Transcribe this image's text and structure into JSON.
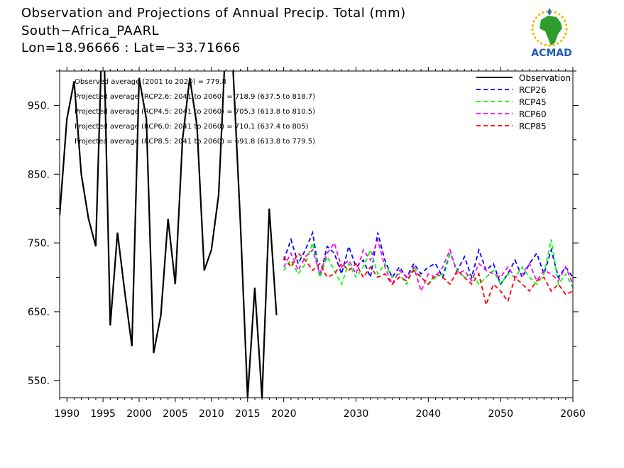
{
  "header": {
    "title_line1": "Observation and Projections of Annual Precip. Total (mm)",
    "title_line2": "South−Africa_PAARL",
    "title_line3": "Lon=18.96666 : Lat=−33.71666"
  },
  "logo": {
    "text": "ACMAD",
    "icon": "africa-map-logo"
  },
  "chart_data": {
    "type": "line",
    "title": "Observation and Projections of Annual Precip. Total (mm)",
    "xlim": [
      1989,
      2060
    ],
    "ylim": [
      525,
      1000
    ],
    "grid": false,
    "legend_placement": "top-right",
    "x_ticks": [
      1990,
      1995,
      2000,
      2005,
      2010,
      2015,
      2020,
      2030,
      2040,
      2050,
      2060
    ],
    "y_ticks": [
      550,
      650,
      750,
      850,
      950
    ],
    "y_tick_labels": [
      "550.",
      "650.",
      "750.",
      "850.",
      "950."
    ],
    "annotations": [
      "Observed average (2001 to 2020) = 779.8",
      "Projected average (RCP2.6: 2041 to 2060) =  718.9 (637.5 to 818.7)",
      "Projected average (RCP4.5: 2041 to 2060) =  705.3 (613.8 to 810.5)",
      "Projected average (RCP6.0: 2041 to 2060) =  710.1 (637.4 to 805)",
      "Projected average (RCP8.5: 2041 to 2060) =  691.8 (613.8 to 779.5)"
    ],
    "series": [
      {
        "name": "Observation",
        "color": "#000000",
        "style": "solid",
        "x": [
          1989,
          1990,
          1991,
          1992,
          1993,
          1994,
          1995,
          1996,
          1997,
          1998,
          1999,
          2000,
          2001,
          2002,
          2003,
          2004,
          2005,
          2006,
          2007,
          2008,
          2009,
          2010,
          2011,
          2012,
          2013,
          2014,
          2015,
          2016,
          2017,
          2018,
          2019,
          2020
        ],
        "y": [
          790,
          930,
          985,
          850,
          785,
          745,
          1100,
          630,
          765,
          680,
          600,
          990,
          930,
          590,
          645,
          785,
          690,
          900,
          990,
          920,
          710,
          740,
          820,
          1050,
          1000,
          780,
          525,
          685,
          525,
          800,
          645,
          null
        ]
      },
      {
        "name": "RCP26",
        "color": "#0000ff",
        "style": "dashed",
        "x": [
          2020,
          2021,
          2022,
          2023,
          2024,
          2025,
          2026,
          2027,
          2028,
          2029,
          2030,
          2031,
          2032,
          2033,
          2034,
          2035,
          2036,
          2037,
          2038,
          2039,
          2040,
          2041,
          2042,
          2043,
          2044,
          2045,
          2046,
          2047,
          2048,
          2049,
          2050,
          2051,
          2052,
          2053,
          2054,
          2055,
          2056,
          2057,
          2058,
          2059,
          2060
        ],
        "y": [
          725,
          755,
          720,
          740,
          765,
          700,
          745,
          735,
          705,
          745,
          715,
          725,
          700,
          765,
          725,
          700,
          715,
          700,
          720,
          705,
          715,
          720,
          700,
          735,
          710,
          730,
          700,
          740,
          710,
          720,
          690,
          705,
          725,
          700,
          720,
          735,
          705,
          740,
          700,
          715,
          700
        ]
      },
      {
        "name": "RCP45",
        "color": "#00ff00",
        "style": "dashed",
        "x": [
          2020,
          2021,
          2022,
          2023,
          2024,
          2025,
          2026,
          2027,
          2028,
          2029,
          2030,
          2031,
          2032,
          2033,
          2034,
          2035,
          2036,
          2037,
          2038,
          2039,
          2040,
          2041,
          2042,
          2043,
          2044,
          2045,
          2046,
          2047,
          2048,
          2049,
          2050,
          2051,
          2052,
          2053,
          2054,
          2055,
          2056,
          2057,
          2058,
          2059,
          2060
        ],
        "y": [
          710,
          725,
          705,
          720,
          750,
          700,
          730,
          710,
          690,
          720,
          700,
          715,
          740,
          705,
          720,
          700,
          705,
          690,
          715,
          700,
          690,
          700,
          705,
          735,
          710,
          700,
          705,
          690,
          700,
          710,
          690,
          705,
          700,
          715,
          700,
          690,
          705,
          755,
          690,
          705,
          685
        ]
      },
      {
        "name": "RCP60",
        "color": "#ff00ff",
        "style": "dashed",
        "x": [
          2020,
          2021,
          2022,
          2023,
          2024,
          2025,
          2026,
          2027,
          2028,
          2029,
          2030,
          2031,
          2032,
          2033,
          2034,
          2035,
          2036,
          2037,
          2038,
          2039,
          2040,
          2041,
          2042,
          2043,
          2044,
          2045,
          2046,
          2047,
          2048,
          2049,
          2050,
          2051,
          2052,
          2053,
          2054,
          2055,
          2056,
          2057,
          2058,
          2059,
          2060
        ],
        "y": [
          715,
          735,
          710,
          730,
          740,
          705,
          735,
          750,
          715,
          725,
          705,
          740,
          725,
          755,
          715,
          690,
          710,
          700,
          715,
          680,
          705,
          700,
          715,
          740,
          705,
          710,
          695,
          720,
          710,
          705,
          700,
          715,
          700,
          705,
          720,
          695,
          710,
          705,
          695,
          715,
          690
        ]
      },
      {
        "name": "RCP85",
        "color": "#ff0000",
        "style": "dashed",
        "x": [
          2020,
          2021,
          2022,
          2023,
          2024,
          2025,
          2026,
          2027,
          2028,
          2029,
          2030,
          2031,
          2032,
          2033,
          2034,
          2035,
          2036,
          2037,
          2038,
          2039,
          2040,
          2041,
          2042,
          2043,
          2044,
          2045,
          2046,
          2047,
          2048,
          2049,
          2050,
          2051,
          2052,
          2053,
          2054,
          2055,
          2056,
          2057,
          2058,
          2059,
          2060
        ],
        "y": [
          730,
          715,
          735,
          725,
          710,
          720,
          700,
          705,
          720,
          710,
          720,
          700,
          715,
          700,
          705,
          690,
          700,
          695,
          710,
          700,
          690,
          705,
          700,
          690,
          710,
          700,
          690,
          705,
          660,
          690,
          680,
          665,
          700,
          690,
          680,
          695,
          700,
          680,
          690,
          675,
          680
        ]
      }
    ]
  }
}
